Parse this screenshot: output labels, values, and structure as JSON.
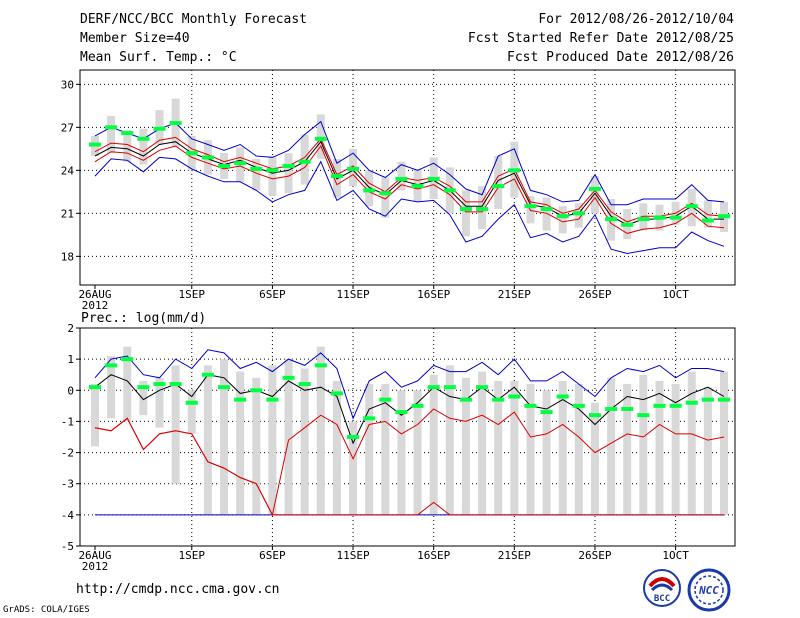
{
  "header": {
    "title": "DERF/NCC/BCC Monthly Forecast",
    "member_size": "Member Size=40",
    "variable": "Mean Surf. Temp.: °C",
    "period": "For 2012/08/26-2012/10/04",
    "started": "Fcst Started Refer Date 2012/08/25",
    "produced": "Fcst Produced Date 2012/08/26"
  },
  "footer": {
    "url": "http://cmdp.ncc.cma.gov.cn",
    "credit": "GrADS: COLA/IGES",
    "logo_left_text": "BCC",
    "logo_right_text": "NCC"
  },
  "colors": {
    "box": "#d8d8d8",
    "median": "#00ff40",
    "upper": "#0000cc",
    "lower": "#0000cc",
    "mid_upper": "#dd0000",
    "mid_lower": "#dd0000",
    "mean": "#000000"
  },
  "chart_data": [
    {
      "type": "box-envelope",
      "title": "Mean Surf. Temp.: °C",
      "x_tick_labels": [
        "26AUG\n2012",
        "1SEP",
        "6SEP",
        "11SEP",
        "16SEP",
        "21SEP",
        "26SEP",
        "1OCT"
      ],
      "x_tick_days": [
        0,
        6,
        11,
        16,
        21,
        26,
        31,
        36
      ],
      "ylim": [
        16,
        31
      ],
      "y_ticks": [
        18,
        21,
        24,
        27,
        30
      ],
      "days": 40,
      "mean": [
        25.0,
        25.6,
        25.5,
        25.0,
        25.8,
        26.0,
        25.2,
        24.8,
        24.4,
        24.7,
        24.2,
        23.8,
        24.0,
        24.6,
        26.0,
        23.4,
        24.0,
        22.8,
        22.3,
        23.3,
        23.0,
        23.3,
        22.6,
        21.5,
        21.5,
        23.3,
        23.8,
        21.6,
        21.4,
        20.8,
        21.0,
        22.4,
        20.8,
        20.2,
        20.6,
        20.6,
        20.8,
        21.5,
        20.6,
        20.6
      ],
      "upper": [
        26.4,
        27.0,
        26.6,
        26.2,
        26.9,
        27.3,
        26.2,
        25.8,
        25.4,
        25.8,
        25.0,
        24.9,
        25.4,
        26.5,
        27.4,
        24.5,
        25.2,
        24.0,
        23.5,
        24.4,
        24.0,
        24.5,
        23.7,
        22.7,
        22.3,
        25.0,
        25.5,
        22.6,
        22.3,
        21.8,
        21.9,
        23.7,
        21.6,
        21.6,
        22.0,
        22.0,
        22.0,
        23.0,
        21.9,
        21.8
      ],
      "lower": [
        23.6,
        24.8,
        24.7,
        23.9,
        24.9,
        24.8,
        24.1,
        23.6,
        23.2,
        23.2,
        22.6,
        21.8,
        22.3,
        22.6,
        24.6,
        21.9,
        22.6,
        21.3,
        20.8,
        22.0,
        21.8,
        21.9,
        20.9,
        19.0,
        19.4,
        20.6,
        21.6,
        19.3,
        19.6,
        19.0,
        19.4,
        20.9,
        18.5,
        18.2,
        18.4,
        18.6,
        18.6,
        19.7,
        19.1,
        18.7
      ],
      "mid_upper": [
        25.3,
        25.9,
        25.8,
        25.3,
        26.1,
        26.3,
        25.5,
        25.1,
        24.6,
        24.9,
        24.5,
        24.1,
        24.3,
        24.9,
        26.2,
        23.7,
        24.3,
        23.1,
        22.5,
        23.5,
        23.3,
        23.5,
        22.9,
        21.8,
        21.8,
        23.6,
        24.1,
        21.8,
        21.6,
        21.0,
        21.3,
        22.6,
        21.1,
        20.4,
        20.8,
        20.8,
        21.0,
        21.7,
        20.9,
        20.8
      ],
      "mid_lower": [
        24.6,
        25.3,
        25.2,
        24.7,
        25.4,
        25.7,
        24.9,
        24.5,
        24.1,
        24.3,
        23.8,
        23.4,
        23.6,
        24.2,
        25.7,
        23.0,
        23.7,
        22.5,
        22.0,
        23.0,
        22.7,
        23.0,
        22.3,
        21.1,
        21.1,
        22.8,
        23.4,
        21.2,
        21.0,
        20.4,
        20.6,
        22.1,
        20.3,
        19.6,
        19.9,
        20.0,
        20.3,
        21.0,
        20.1,
        20.0
      ],
      "median": [
        25.8,
        27.0,
        26.6,
        26.2,
        26.9,
        27.3,
        25.2,
        24.9,
        24.3,
        24.5,
        24.1,
        24.0,
        24.3,
        24.6,
        26.2,
        23.6,
        24.1,
        22.6,
        22.4,
        23.4,
        22.9,
        23.4,
        22.6,
        21.3,
        21.3,
        22.9,
        24.0,
        21.5,
        21.3,
        20.8,
        21.0,
        22.7,
        20.6,
        20.2,
        20.6,
        20.7,
        20.7,
        21.5,
        20.5,
        20.8
      ],
      "box_top": [
        26.4,
        27.8,
        26.8,
        26.9,
        28.2,
        29.0,
        26.4,
        26.1,
        25.2,
        25.6,
        24.8,
        25.0,
        25.2,
        26.5,
        27.9,
        24.8,
        25.5,
        24.0,
        23.5,
        24.6,
        24.1,
        24.9,
        24.2,
        22.6,
        22.9,
        25.0,
        26.0,
        22.2,
        22.1,
        21.5,
        21.7,
        23.6,
        22.0,
        21.3,
        21.7,
        21.6,
        21.8,
        22.7,
        21.9,
        21.8
      ],
      "box_bot": [
        25.0,
        25.2,
        24.6,
        24.4,
        25.8,
        25.6,
        24.0,
        23.7,
        23.4,
        23.2,
        22.6,
        22.2,
        22.4,
        23.0,
        24.8,
        22.1,
        22.9,
        21.5,
        20.7,
        22.6,
        21.8,
        22.0,
        21.0,
        19.4,
        19.9,
        21.3,
        22.1,
        20.3,
        19.8,
        19.6,
        20.0,
        21.0,
        19.1,
        19.2,
        19.8,
        19.8,
        20.2,
        20.1,
        20.0,
        19.7
      ]
    },
    {
      "type": "box-envelope",
      "title": "Prec.: log(mm/d)",
      "x_tick_labels": [
        "26AUG\n2012",
        "1SEP",
        "6SEP",
        "11SEP",
        "16SEP",
        "21SEP",
        "26SEP",
        "1OCT"
      ],
      "x_tick_days": [
        0,
        6,
        11,
        16,
        21,
        26,
        31,
        36
      ],
      "ylim": [
        -5,
        2
      ],
      "y_ticks": [
        -5,
        -4,
        -3,
        -2,
        -1,
        0,
        1,
        2
      ],
      "days": 40,
      "mean": [
        0.1,
        0.5,
        0.3,
        -0.3,
        0.0,
        0.2,
        -0.2,
        0.5,
        0.4,
        -0.1,
        0.0,
        -0.2,
        0.3,
        0.0,
        0.1,
        -0.2,
        -1.7,
        -0.6,
        -0.4,
        -0.8,
        -0.4,
        0.1,
        -0.2,
        -0.3,
        0.1,
        -0.3,
        0.1,
        -0.5,
        -0.6,
        -0.3,
        -0.6,
        -1.1,
        -0.6,
        -0.2,
        -0.3,
        -0.1,
        -0.4,
        -0.1,
        0.1,
        -0.2
      ],
      "upper": [
        0.4,
        1.0,
        1.1,
        0.5,
        0.4,
        1.0,
        0.7,
        1.3,
        1.2,
        0.7,
        0.9,
        0.6,
        1.0,
        0.8,
        1.2,
        0.7,
        -0.9,
        0.3,
        0.6,
        0.1,
        0.3,
        0.8,
        0.6,
        0.6,
        0.9,
        0.5,
        1.0,
        0.3,
        0.3,
        0.6,
        0.2,
        -0.2,
        0.4,
        0.7,
        0.6,
        0.8,
        0.4,
        0.7,
        0.7,
        0.6
      ],
      "lower": [
        -4.0,
        -4.0,
        -4.0,
        -4.0,
        -4.0,
        -4.0,
        -4.0,
        -4.0,
        -4.0,
        -4.0,
        -4.0,
        -4.0,
        -4.0,
        -4.0,
        -4.0,
        -4.0,
        -4.0,
        -4.0,
        -4.0,
        -4.0,
        -4.0,
        -4.0,
        -4.0,
        -4.0,
        -4.0,
        -4.0,
        -4.0,
        -4.0,
        -4.0,
        -4.0,
        -4.0,
        -4.0,
        -4.0,
        -4.0,
        -4.0,
        -4.0,
        -4.0,
        -4.0,
        -4.0,
        -4.0
      ],
      "mid_upper": [
        -1.2,
        -1.3,
        -0.9,
        -1.9,
        -1.4,
        -1.3,
        -1.4,
        -2.3,
        -2.5,
        -2.8,
        -3.0,
        -4.0,
        -4.0,
        -4.0,
        -4.0,
        -4.0,
        -4.0,
        -4.0,
        -4.0,
        -4.0,
        -4.0,
        -3.6,
        -4.0,
        -4.0,
        -4.0,
        -4.0,
        -4.0,
        -4.0,
        -4.0,
        -4.0,
        -4.0,
        -4.0,
        -4.0,
        -4.0,
        -4.0,
        -4.0,
        -4.0,
        -4.0,
        -4.0,
        -4.0
      ],
      "mid_lower": [
        -1.2,
        -1.3,
        -0.9,
        -1.9,
        -1.4,
        -1.3,
        -1.4,
        -2.3,
        -2.5,
        -2.8,
        -3.0,
        -4.0,
        -1.6,
        -1.2,
        -0.8,
        -1.1,
        -2.2,
        -1.1,
        -1.0,
        -1.4,
        -1.1,
        -0.6,
        -0.9,
        -1.0,
        -0.8,
        -1.1,
        -0.7,
        -1.5,
        -1.4,
        -1.1,
        -1.5,
        -2.0,
        -1.7,
        -1.4,
        -1.5,
        -1.1,
        -1.4,
        -1.4,
        -1.6,
        -1.5
      ],
      "median": [
        0.1,
        0.8,
        1.0,
        0.1,
        0.2,
        0.2,
        -0.4,
        0.5,
        0.1,
        -0.3,
        0.0,
        -0.3,
        0.4,
        0.2,
        0.8,
        -0.1,
        -1.5,
        -0.9,
        -0.3,
        -0.7,
        -0.5,
        0.1,
        0.1,
        -0.3,
        0.1,
        -0.3,
        -0.2,
        -0.5,
        -0.7,
        -0.2,
        -0.5,
        -0.8,
        -0.6,
        -0.6,
        -0.8,
        -0.5,
        -0.5,
        -0.4,
        -0.3,
        -0.3
      ],
      "box_top": [
        0.2,
        1.1,
        1.4,
        0.3,
        0.4,
        0.8,
        0.0,
        0.8,
        1.0,
        0.6,
        0.4,
        0.8,
        1.0,
        0.7,
        1.4,
        0.3,
        -1.0,
        0.2,
        0.2,
        0.0,
        0.0,
        0.5,
        0.8,
        0.4,
        0.6,
        0.3,
        0.3,
        0.2,
        0.0,
        0.3,
        0.2,
        -0.4,
        0.4,
        0.2,
        0.5,
        0.3,
        0.2,
        0.6,
        0.1,
        0.6
      ],
      "box_bot": [
        -1.8,
        -0.9,
        -1.0,
        -0.8,
        -1.2,
        -3.0,
        -1.4,
        -4.0,
        -4.0,
        -4.0,
        -4.0,
        -4.0,
        -4.0,
        -4.0,
        -4.0,
        -4.0,
        -4.0,
        -4.0,
        -4.0,
        -4.0,
        -4.0,
        -4.0,
        -4.0,
        -4.0,
        -4.0,
        -4.0,
        -4.0,
        -4.0,
        -4.0,
        -4.0,
        -4.0,
        -4.0,
        -4.0,
        -4.0,
        -4.0,
        -4.0,
        -4.0,
        -4.0,
        -4.0,
        -4.0
      ]
    }
  ]
}
